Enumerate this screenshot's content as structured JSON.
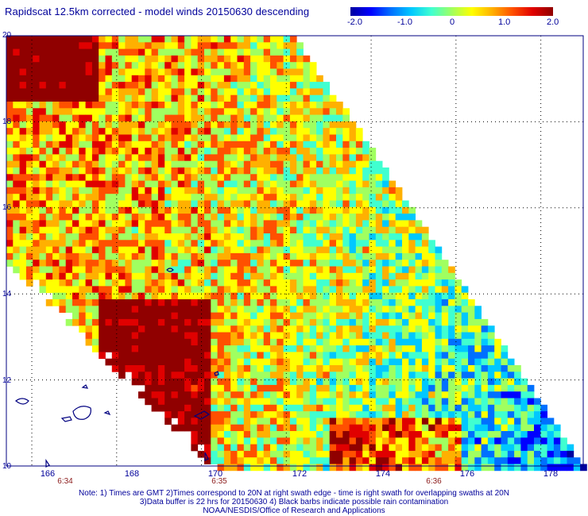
{
  "title": "Rapidscat 12.5km corrected - model winds 20150630 descending",
  "colorbar": {
    "ticks": [
      "-2.0",
      "-1.0",
      "0",
      "1.0",
      "2.0"
    ],
    "range": [
      -2.0,
      2.0
    ],
    "colors": [
      "#0000a0",
      "#0000ff",
      "#0070ff",
      "#00c8ff",
      "#40ffd0",
      "#a0ff60",
      "#ffff00",
      "#ffb000",
      "#ff5000",
      "#e00000",
      "#900000"
    ]
  },
  "axes": {
    "x_ticks": [
      "166",
      "168",
      "170",
      "172",
      "174",
      "176",
      "178"
    ],
    "y_ticks": [
      "20",
      "18",
      "16",
      "14",
      "12",
      "10"
    ],
    "lon_range": [
      165.4,
      179.0
    ],
    "lat_range": [
      10.0,
      20.0
    ]
  },
  "time_labels": [
    {
      "lon": 166.8,
      "text": "6:34"
    },
    {
      "lon": 170.0,
      "text": "6:35"
    },
    {
      "lon": 175.2,
      "text": "6:36"
    }
  ],
  "notes": {
    "line1": "Note: 1) Times are GMT 2)Times correspond to 20N at right swath edge - time is right swath for overlapping swaths at 20N",
    "line2": "3)Data buffer is 22 hrs for 20150630 4) Black barbs indicate possible rain contamination",
    "line3": "NOAA/NESDIS/Office of Research and Applications"
  }
}
